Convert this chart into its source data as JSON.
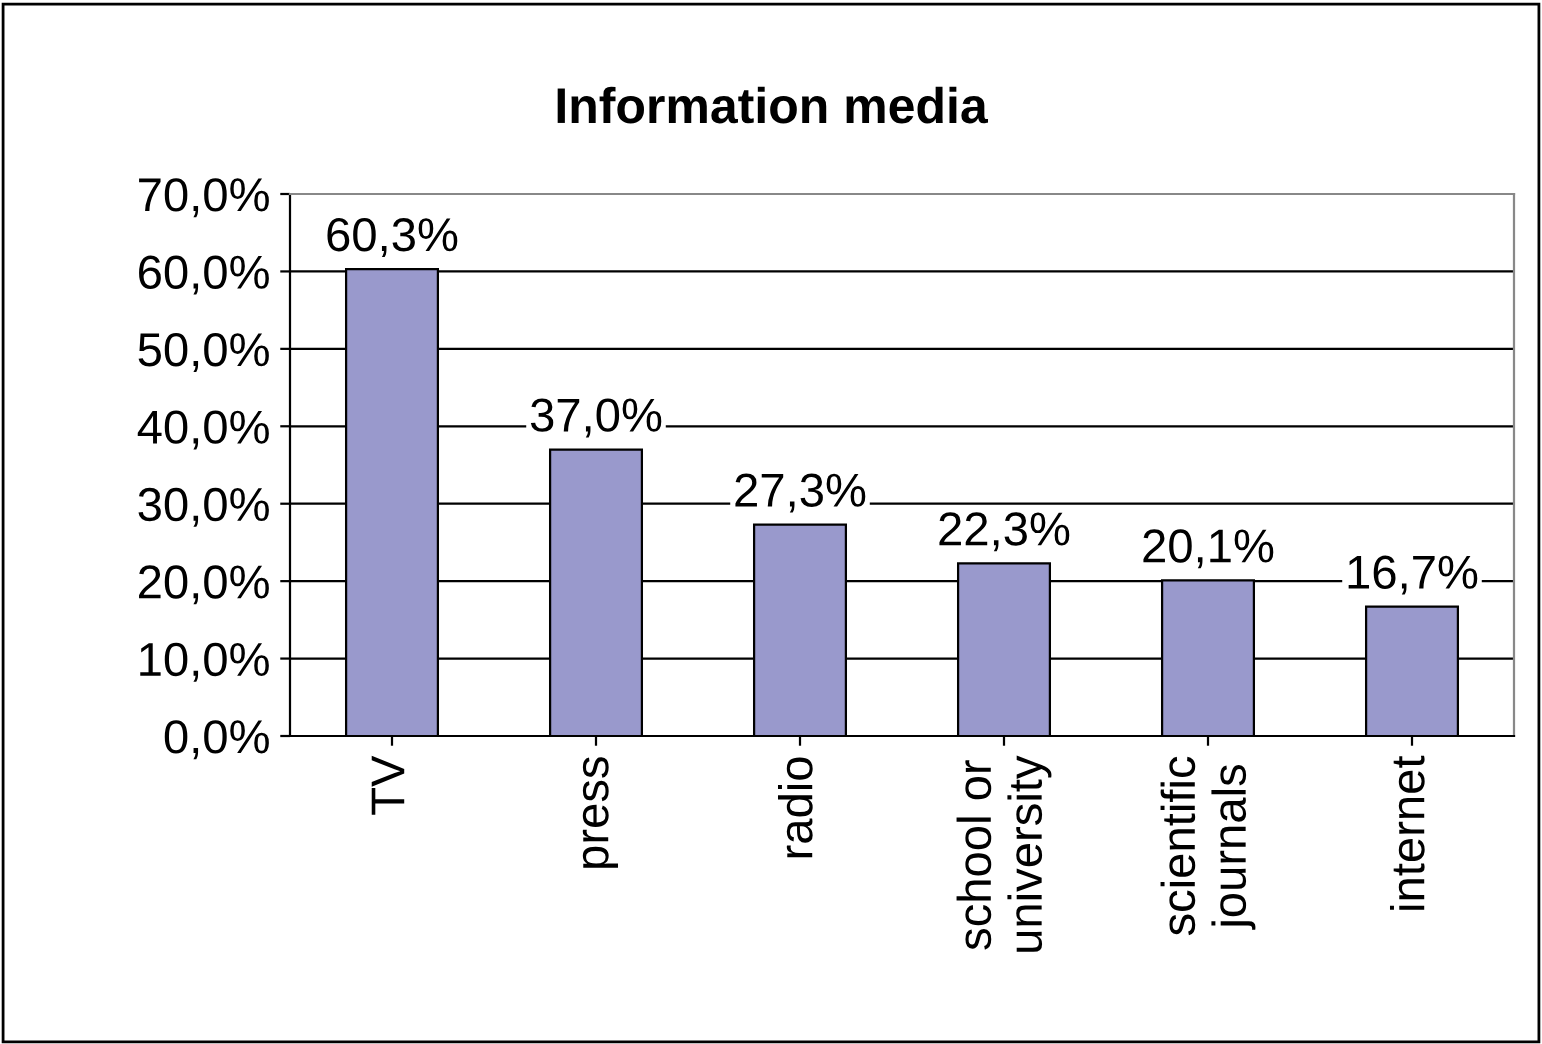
{
  "chart_data": {
    "type": "bar",
    "title": "Information media",
    "categories": [
      "TV",
      "press",
      "radio",
      "school or\nuniversity",
      "scientific\njournals",
      "internet"
    ],
    "values": [
      60.3,
      37.0,
      27.3,
      22.3,
      20.1,
      16.7
    ],
    "value_labels": [
      "60,3%",
      "37,0%",
      "27,3%",
      "22,3%",
      "20,1%",
      "16,7%"
    ],
    "color": "#9999cc",
    "ylim": [
      0,
      70
    ],
    "yticks": [
      {
        "value": 0,
        "label": "0,0%"
      },
      {
        "value": 10,
        "label": "10,0%"
      },
      {
        "value": 20,
        "label": "20,0%"
      },
      {
        "value": 30,
        "label": "30,0%"
      },
      {
        "value": 40,
        "label": "40,0%"
      },
      {
        "value": 50,
        "label": "50,0%"
      },
      {
        "value": 60,
        "label": "60,0%"
      },
      {
        "value": 70,
        "label": "70,0%"
      }
    ],
    "grid": "y",
    "legend": false
  }
}
